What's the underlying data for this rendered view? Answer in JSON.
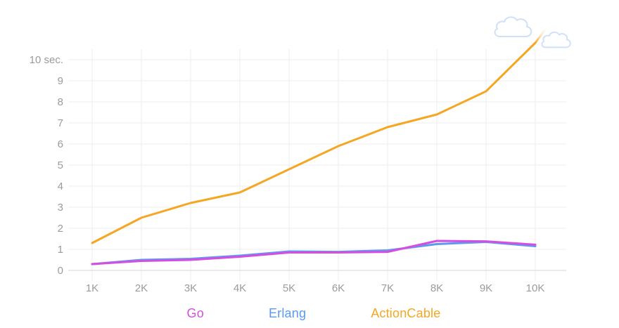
{
  "chart_data": {
    "type": "line",
    "title": "",
    "categories": [
      "1K",
      "2K",
      "3K",
      "4K",
      "5K",
      "6K",
      "7K",
      "8K",
      "9K",
      "10K"
    ],
    "series": [
      {
        "name": "Go",
        "color": "#d44fe0",
        "values": [
          0.3,
          0.45,
          0.5,
          0.65,
          0.85,
          0.85,
          0.88,
          1.4,
          1.38,
          1.22
        ]
      },
      {
        "name": "Erlang",
        "color": "#5b9af0",
        "values": [
          0.3,
          0.5,
          0.55,
          0.7,
          0.9,
          0.88,
          0.95,
          1.25,
          1.35,
          1.15
        ]
      },
      {
        "name": "ActionCable",
        "color": "#f5a623",
        "values": [
          1.3,
          2.5,
          3.2,
          3.7,
          4.8,
          5.9,
          6.8,
          7.4,
          8.5,
          10.8
        ],
        "overflow_tip_value": 11.6
      }
    ],
    "y_tick_labels": [
      "0",
      "1",
      "2",
      "3",
      "4",
      "5",
      "6",
      "7",
      "8",
      "9",
      "10 sec."
    ],
    "y_unit": "sec.",
    "ylim": [
      0,
      10
    ],
    "xlabel": "",
    "ylabel": "",
    "grid": true,
    "legend_position": "bottom",
    "decorations": [
      {
        "name": "cloud-icon",
        "count": 2,
        "color": "#cfe1f8"
      }
    ],
    "colors": {
      "grid": "#ededed",
      "axis": "#d6d6d6",
      "tick_text": "#9b9b9b",
      "background": "#ffffff"
    }
  }
}
